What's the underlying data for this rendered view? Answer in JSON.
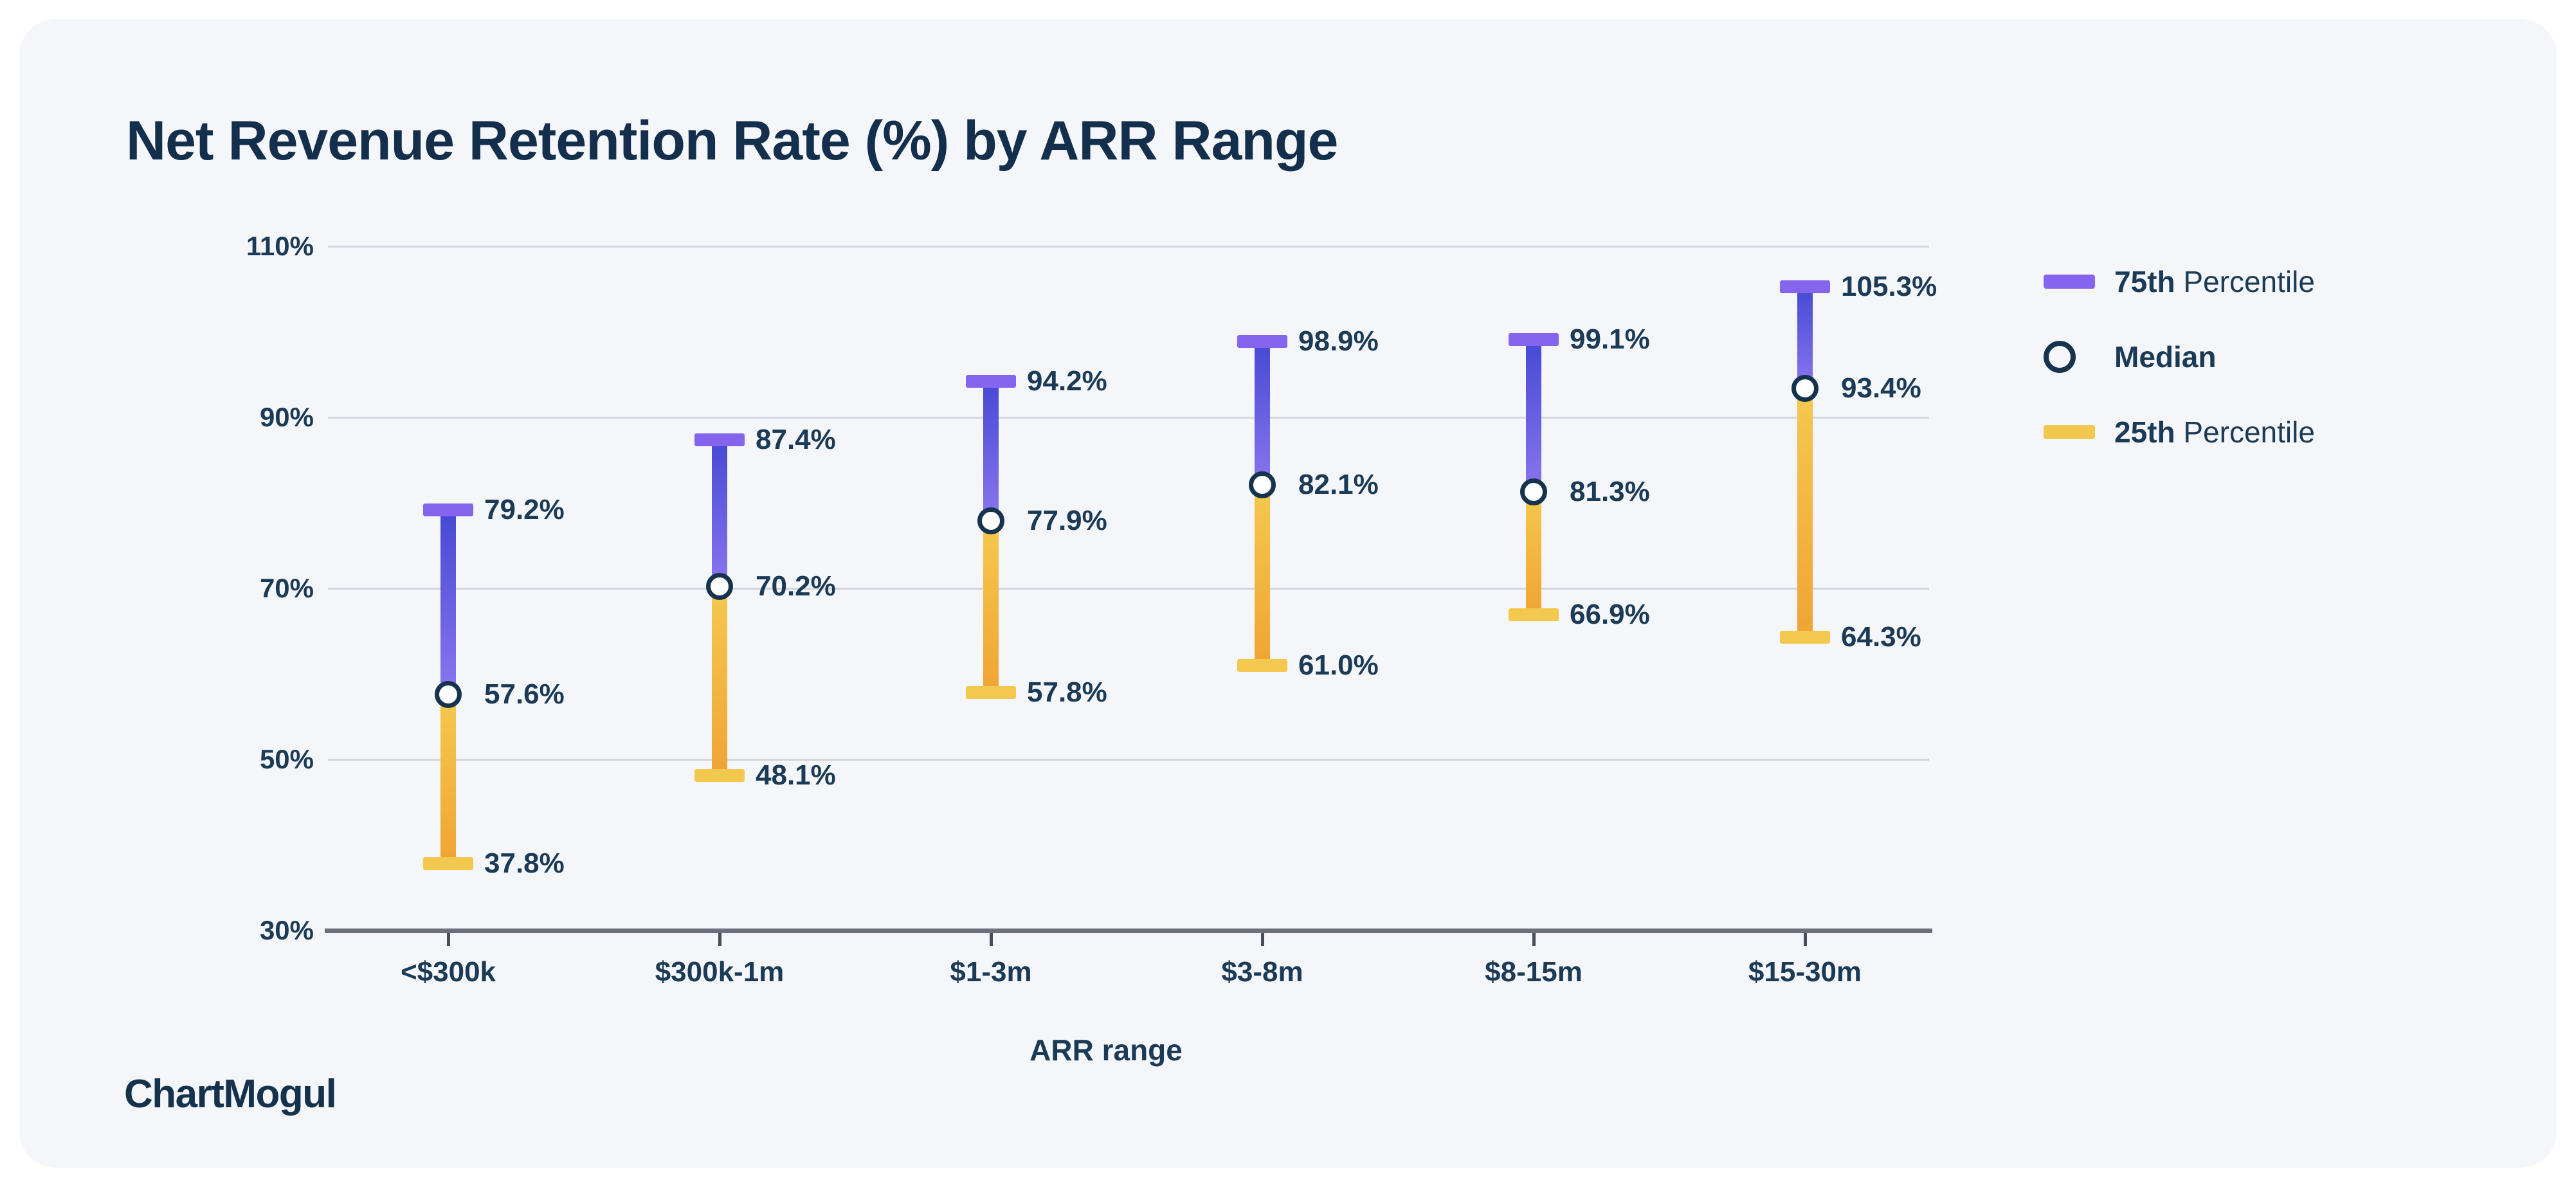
{
  "card": {
    "title": "Net Revenue Retention Rate (%) by ARR Range",
    "brand": "ChartMogul"
  },
  "chart_data": {
    "type": "bar",
    "subtype": "percentile-range-whisker",
    "title": "Net Revenue Retention Rate (%) by ARR Range",
    "xlabel": "ARR range",
    "ylabel": "",
    "categories": [
      "<$300k",
      "$300k-1m",
      "$1-3m",
      "$3-8m",
      "$8-15m",
      "$15-30m"
    ],
    "series": [
      {
        "name": "75th Percentile",
        "values": [
          79.2,
          87.4,
          94.2,
          98.9,
          99.1,
          105.3
        ]
      },
      {
        "name": "Median",
        "values": [
          57.6,
          70.2,
          77.9,
          82.1,
          81.3,
          93.4
        ]
      },
      {
        "name": "25th Percentile",
        "values": [
          37.8,
          48.1,
          57.8,
          61.0,
          66.9,
          64.3
        ]
      }
    ],
    "ylim": [
      30,
      110
    ],
    "yticks": [
      110,
      90,
      70,
      50,
      30
    ],
    "ytick_suffix": "%",
    "value_suffix": "%",
    "grid": true,
    "legend_position": "right"
  },
  "legend": {
    "items": [
      {
        "marker": "purple-bar",
        "label_bold": "75th",
        "label_rest": " Percentile"
      },
      {
        "marker": "median-circle",
        "label_bold": "Median",
        "label_rest": ""
      },
      {
        "marker": "yellow-bar",
        "label_bold": "25th",
        "label_rest": " Percentile"
      }
    ]
  },
  "colors": {
    "card_background": "#F4F6FA",
    "text_navy": "#1B3A55",
    "title_navy": "#142F4B",
    "purple_cap": "#8565EE",
    "purple_stem_top": "#4549D3",
    "purple_stem_bottom": "#8A76EE",
    "yellow_cap": "#F2C94E",
    "yellow_stem_top": "#F5C94F",
    "yellow_stem_bottom": "#F0A434",
    "median_ring": "#16334E",
    "gridline": "#D3D5DC",
    "axis_line": "#6C707A"
  }
}
